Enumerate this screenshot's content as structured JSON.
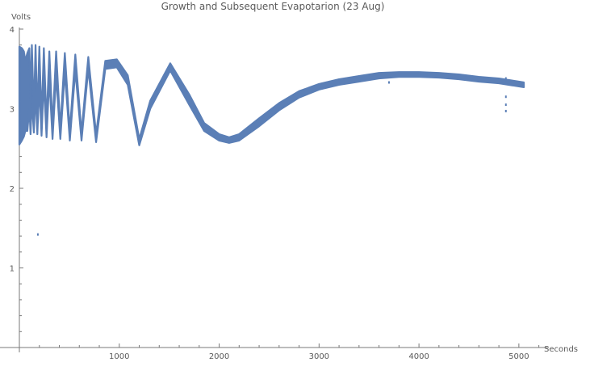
{
  "chart_data": {
    "type": "scatter",
    "title": "Growth and Subsequent Evapotarion (23 Aug)",
    "xlabel": "Seconds",
    "ylabel": "Volts",
    "xlim": [
      0,
      5300
    ],
    "ylim": [
      0,
      4
    ],
    "xticks": [
      1000,
      2000,
      3000,
      4000,
      5000
    ],
    "yticks": [
      1,
      2,
      3,
      4
    ],
    "x_tick_labels": [
      "1000",
      "2000",
      "3000",
      "4000",
      "5000"
    ],
    "y_tick_labels": [
      "1",
      "2",
      "3",
      "4"
    ],
    "grid": false,
    "series_color": "#5b7fb6",
    "series": [
      {
        "band_lower": [
          [
            0,
            2.55
          ],
          [
            25,
            2.6
          ],
          [
            45,
            2.65
          ],
          [
            60,
            2.72
          ],
          [
            80,
            2.72
          ],
          [
            100,
            3.0
          ],
          [
            112,
            2.68
          ],
          [
            125,
            3.1
          ],
          [
            145,
            2.7
          ],
          [
            162,
            3.2
          ],
          [
            180,
            2.68
          ],
          [
            200,
            3.3
          ],
          [
            222,
            2.66
          ],
          [
            245,
            3.35
          ],
          [
            272,
            2.64
          ],
          [
            300,
            3.38
          ],
          [
            332,
            2.62
          ],
          [
            368,
            3.42
          ],
          [
            410,
            2.62
          ],
          [
            455,
            3.46
          ],
          [
            505,
            2.6
          ],
          [
            560,
            3.48
          ],
          [
            622,
            2.6
          ],
          [
            690,
            3.5
          ],
          [
            768,
            2.58
          ],
          [
            860,
            3.5
          ],
          [
            975,
            3.52
          ],
          [
            1085,
            3.3
          ],
          [
            1200,
            2.54
          ],
          [
            1310,
            3.0
          ],
          [
            1510,
            3.48
          ],
          [
            1700,
            3.05
          ],
          [
            1850,
            2.72
          ],
          [
            2000,
            2.6
          ],
          [
            2100,
            2.57
          ],
          [
            2200,
            2.6
          ],
          [
            2400,
            2.78
          ],
          [
            2600,
            2.98
          ],
          [
            2800,
            3.14
          ],
          [
            3000,
            3.24
          ],
          [
            3200,
            3.3
          ],
          [
            3400,
            3.34
          ],
          [
            3600,
            3.38
          ],
          [
            3800,
            3.4
          ],
          [
            4000,
            3.4
          ],
          [
            4200,
            3.39
          ],
          [
            4400,
            3.37
          ],
          [
            4600,
            3.34
          ],
          [
            4800,
            3.32
          ],
          [
            5000,
            3.28
          ],
          [
            5050,
            3.27
          ]
        ],
        "band_upper": [
          [
            0,
            3.78
          ],
          [
            25,
            3.76
          ],
          [
            45,
            3.72
          ],
          [
            60,
            3.6
          ],
          [
            80,
            3.7
          ],
          [
            100,
            3.76
          ],
          [
            112,
            3.1
          ],
          [
            125,
            3.8
          ],
          [
            145,
            2.95
          ],
          [
            162,
            3.8
          ],
          [
            180,
            2.9
          ],
          [
            200,
            3.78
          ],
          [
            222,
            2.85
          ],
          [
            245,
            3.76
          ],
          [
            272,
            2.82
          ],
          [
            300,
            3.72
          ],
          [
            332,
            2.78
          ],
          [
            368,
            3.72
          ],
          [
            410,
            2.75
          ],
          [
            455,
            3.7
          ],
          [
            505,
            2.72
          ],
          [
            560,
            3.68
          ],
          [
            622,
            2.7
          ],
          [
            690,
            3.65
          ],
          [
            768,
            2.68
          ],
          [
            860,
            3.6
          ],
          [
            975,
            3.62
          ],
          [
            1085,
            3.42
          ],
          [
            1200,
            2.62
          ],
          [
            1310,
            3.1
          ],
          [
            1510,
            3.57
          ],
          [
            1700,
            3.18
          ],
          [
            1850,
            2.82
          ],
          [
            2000,
            2.68
          ],
          [
            2100,
            2.64
          ],
          [
            2200,
            2.68
          ],
          [
            2400,
            2.88
          ],
          [
            2600,
            3.07
          ],
          [
            2800,
            3.22
          ],
          [
            3000,
            3.31
          ],
          [
            3200,
            3.37
          ],
          [
            3400,
            3.41
          ],
          [
            3600,
            3.45
          ],
          [
            3800,
            3.46
          ],
          [
            4000,
            3.46
          ],
          [
            4200,
            3.45
          ],
          [
            4400,
            3.43
          ],
          [
            4600,
            3.4
          ],
          [
            4800,
            3.38
          ],
          [
            5000,
            3.34
          ],
          [
            5050,
            3.33
          ]
        ]
      }
    ],
    "outliers": [
      [
        185,
        1.42
      ],
      [
        4870,
        2.97
      ],
      [
        4870,
        3.05
      ],
      [
        4870,
        3.15
      ],
      [
        4870,
        3.38
      ],
      [
        3700,
        3.33
      ]
    ]
  }
}
